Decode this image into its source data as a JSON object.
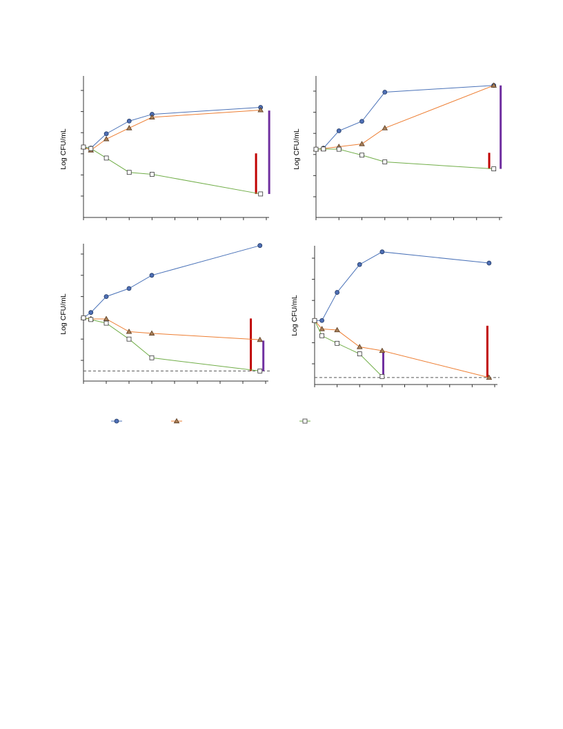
{
  "colors": {
    "series_a": "#4a72b8",
    "series_a_fill": "#4f6fb5",
    "series_b": "#ed7d31",
    "series_b_fill": "#a8805a",
    "series_c": "#70ad47",
    "series_c_fill": "#ffffff",
    "bar_red": "#c00000",
    "bar_purple": "#7030a0",
    "limit_line": "#555555",
    "axis": "#333333"
  },
  "chart_data": [
    {
      "type": "line",
      "ylabel": "Log CFU/mL",
      "xlim": [
        0,
        32
      ],
      "ylim": [
        3,
        9.4
      ],
      "xticks": [
        0,
        4,
        8,
        12,
        16,
        20,
        24,
        28,
        32
      ],
      "yticks": [
        4,
        5,
        6,
        7,
        8,
        9
      ],
      "series": [
        {
          "marker": "circle",
          "x": [
            0,
            1.3,
            4,
            8,
            12,
            31
          ],
          "y": [
            6.32,
            6.27,
            6.95,
            7.55,
            7.87,
            8.2
          ]
        },
        {
          "marker": "triangle",
          "x": [
            0,
            1.3,
            4,
            8,
            12,
            31
          ],
          "y": [
            6.32,
            6.17,
            6.7,
            7.22,
            7.73,
            8.07
          ]
        },
        {
          "marker": "square",
          "x": [
            0,
            1.3,
            4,
            8,
            12,
            31
          ],
          "y": [
            6.32,
            6.25,
            5.8,
            5.12,
            5.03,
            4.1
          ]
        }
      ],
      "bars": [
        {
          "color": "red",
          "x": 30.2,
          "y": [
            4.1,
            6.02
          ]
        },
        {
          "color": "purple",
          "x": 32.5,
          "y": [
            4.1,
            8.05
          ]
        }
      ]
    },
    {
      "type": "line",
      "ylabel": "Log CFU/mL",
      "xlim": [
        0,
        32
      ],
      "ylim": [
        3,
        9.4
      ],
      "xticks": [
        0,
        4,
        8,
        12,
        16,
        20,
        24,
        28,
        32
      ],
      "yticks": [
        4,
        5,
        6,
        7,
        8,
        9
      ],
      "series": [
        {
          "marker": "circle",
          "x": [
            0,
            1.3,
            4,
            8,
            12,
            31
          ],
          "y": [
            6.25,
            6.3,
            7.12,
            7.57,
            8.95,
            9.27
          ]
        },
        {
          "marker": "triangle",
          "x": [
            0,
            1.3,
            4,
            8,
            12,
            31
          ],
          "y": [
            6.25,
            6.28,
            6.37,
            6.5,
            7.25,
            9.27
          ]
        },
        {
          "marker": "square",
          "x": [
            0,
            1.3,
            4,
            8,
            12,
            31
          ],
          "y": [
            6.25,
            6.26,
            6.25,
            5.97,
            5.65,
            5.32
          ]
        }
      ],
      "bars": [
        {
          "color": "red",
          "x": 30.2,
          "y": [
            5.32,
            6.08
          ]
        },
        {
          "color": "purple",
          "x": 32.2,
          "y": [
            5.32,
            9.27
          ]
        }
      ]
    },
    {
      "type": "line",
      "ylabel": "Log CFU/mL",
      "xlim": [
        0,
        32
      ],
      "ylim": [
        3,
        9.4
      ],
      "xticks": [
        0,
        4,
        8,
        12,
        16,
        20,
        24,
        28,
        32
      ],
      "yticks": [
        4,
        5,
        6,
        7,
        8,
        9
      ],
      "series": [
        {
          "marker": "circle",
          "x": [
            0,
            1.3,
            4,
            8,
            12,
            31
          ],
          "y": [
            6.0,
            6.25,
            7.0,
            7.38,
            8.0,
            9.4
          ]
        },
        {
          "marker": "triangle",
          "x": [
            0,
            1.3,
            4,
            8,
            12,
            31
          ],
          "y": [
            6.0,
            5.95,
            5.95,
            5.35,
            5.27,
            4.97
          ]
        },
        {
          "marker": "square",
          "x": [
            0,
            1.3,
            4,
            8,
            12,
            31
          ],
          "y": [
            6.0,
            5.92,
            5.75,
            5.0,
            4.12,
            3.5
          ]
        }
      ],
      "bars": [
        {
          "color": "red",
          "x": 29.4,
          "y": [
            3.5,
            5.97
          ]
        },
        {
          "color": "purple",
          "x": 31.6,
          "y": [
            3.5,
            4.93
          ]
        }
      ],
      "detection_limit": 3.5
    },
    {
      "type": "line",
      "ylabel": "Log CFU/mL",
      "xlim": [
        0,
        32
      ],
      "ylim": [
        3,
        9.4
      ],
      "xticks": [
        0,
        4,
        8,
        12,
        16,
        20,
        24,
        28,
        32
      ],
      "yticks": [
        4,
        5,
        6,
        7,
        8,
        9
      ],
      "series": [
        {
          "marker": "circle",
          "x": [
            0,
            1.3,
            4,
            8,
            12,
            31
          ],
          "y": [
            6.05,
            6.05,
            7.38,
            8.7,
            9.3,
            8.77
          ]
        },
        {
          "marker": "triangle",
          "x": [
            0,
            1.3,
            4,
            8,
            12,
            31
          ],
          "y": [
            6.05,
            5.65,
            5.6,
            4.8,
            4.62,
            3.35
          ]
        },
        {
          "marker": "square",
          "x": [
            0,
            1.3,
            4,
            8,
            12
          ],
          "y": [
            6.05,
            5.33,
            4.97,
            4.47,
            3.4
          ]
        }
      ],
      "bars": [
        {
          "color": "red",
          "x": 30.7,
          "y": [
            3.35,
            5.8
          ]
        },
        {
          "color": "purple",
          "x": 12.2,
          "y": [
            3.4,
            4.55
          ]
        }
      ],
      "detection_limit": 3.35
    }
  ],
  "legend": {
    "entries": [
      {
        "marker": "circle"
      },
      {
        "marker": "triangle"
      },
      {
        "marker": "square"
      }
    ]
  }
}
